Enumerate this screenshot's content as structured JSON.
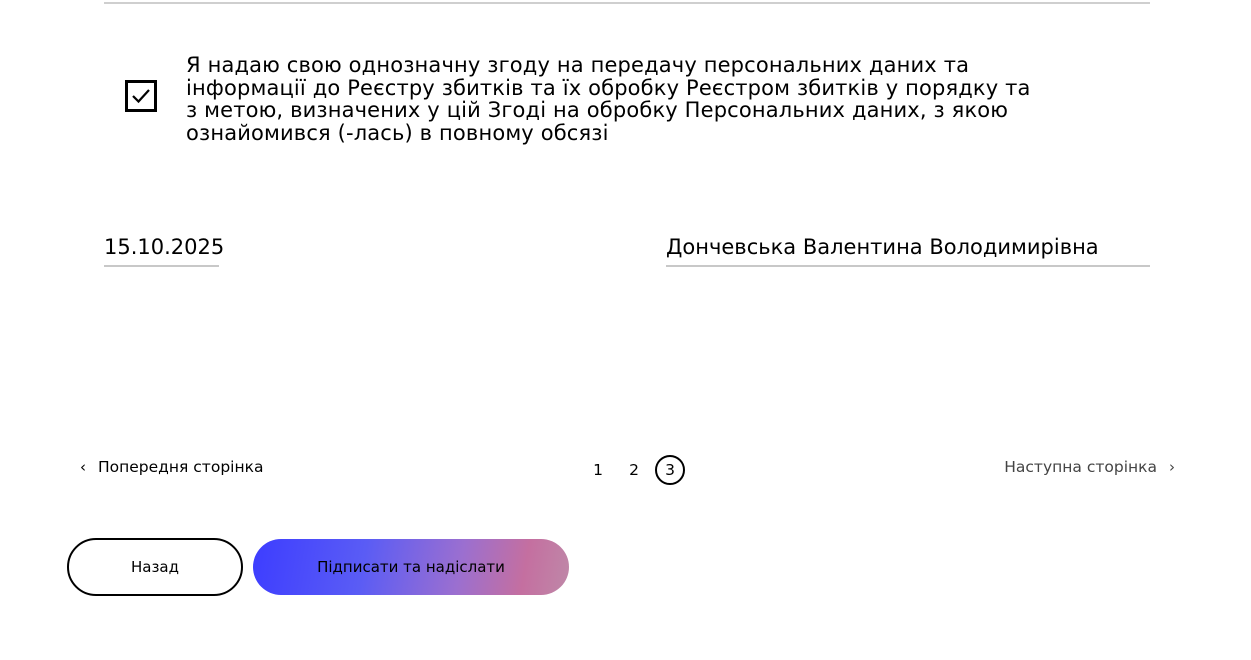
{
  "consent": {
    "checked": true,
    "lines": [
      "Я надаю свою однозначну згоду на передачу персональних даних та",
      "інформації до Реєстру збитків та їх обробку Реєстром збитків у порядку та",
      "з метою, визначених у цій Згоді на обробку Персональних даних, з якою",
      "ознайомився (-лась) в повному обсязі"
    ]
  },
  "signature": {
    "date": "15.10.2025",
    "name": "Дончевська Валентина Володимирівна"
  },
  "pagination": {
    "prev_label": "Попередня сторінка",
    "next_label": "Наступна сторінка",
    "pages": [
      "1",
      "2",
      "3"
    ],
    "current": "3"
  },
  "actions": {
    "back_label": "Назад",
    "submit_label": "Підписати та надіслати"
  }
}
